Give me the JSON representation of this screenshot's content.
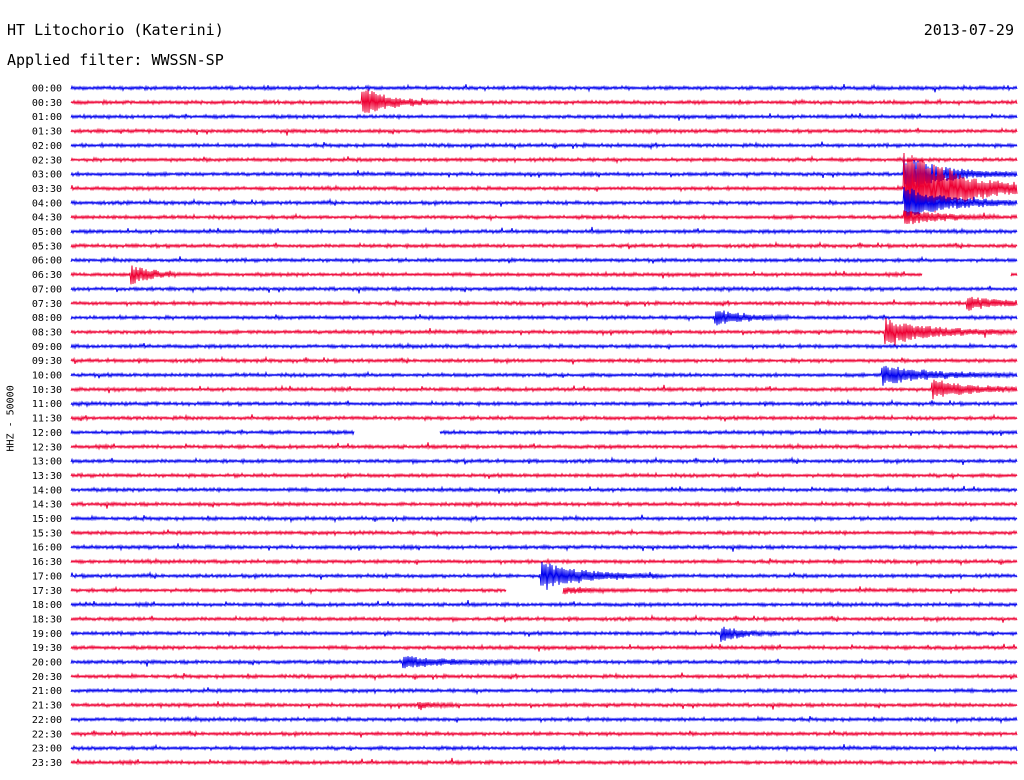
{
  "header": {
    "station": "HT Litochorio (Katerini)",
    "date": "2013-07-29",
    "filter": "Applied filter: WWSSN-SP",
    "channel": "HHZ - 50000"
  },
  "colors": {
    "blue": "#0000ee",
    "red": "#ee0033"
  },
  "chart_data": {
    "type": "line",
    "title": "HT Litochorio (Katerini)",
    "subtitle": "Applied filter: WWSSN-SP",
    "ylabel": "HHZ - 50000",
    "y_tick_labels": [
      "00:00",
      "00:30",
      "01:00",
      "01:30",
      "02:00",
      "02:30",
      "03:00",
      "03:30",
      "04:00",
      "04:30",
      "05:00",
      "05:30",
      "06:00",
      "06:30",
      "07:00",
      "07:30",
      "08:00",
      "08:30",
      "09:00",
      "09:30",
      "10:00",
      "10:30",
      "11:00",
      "11:30",
      "12:00",
      "12:30",
      "13:00",
      "13:30",
      "14:00",
      "14:30",
      "15:00",
      "15:30",
      "16:00",
      "16:30",
      "17:00",
      "17:30",
      "18:00",
      "18:30",
      "19:00",
      "19:30",
      "20:00",
      "20:30",
      "21:00",
      "21:30",
      "22:00",
      "22:30",
      "23:00",
      "23:30"
    ],
    "trace_colors": [
      "blue",
      "red"
    ],
    "x_range_minutes": [
      0,
      30
    ],
    "events": [
      {
        "line": 1,
        "t": 9.2,
        "amp": 16,
        "dur": 0.8,
        "color": "red"
      },
      {
        "line": 7,
        "t": 26.4,
        "amp": 42,
        "dur": 1.6,
        "color": "red"
      },
      {
        "line": 6,
        "t": 26.4,
        "amp": 18,
        "dur": 1.2,
        "color": "blue"
      },
      {
        "line": 8,
        "t": 26.4,
        "amp": 16,
        "dur": 1.4,
        "color": "blue"
      },
      {
        "line": 9,
        "t": 26.4,
        "amp": 8,
        "dur": 1.0,
        "color": "red"
      },
      {
        "line": 13,
        "t": 1.9,
        "amp": 10,
        "dur": 0.6,
        "color": "red"
      },
      {
        "line": 15,
        "t": 28.4,
        "amp": 6,
        "dur": 1.2,
        "color": "red"
      },
      {
        "line": 16,
        "t": 20.4,
        "amp": 9,
        "dur": 0.8,
        "color": "blue"
      },
      {
        "line": 17,
        "t": 25.8,
        "amp": 13,
        "dur": 1.4,
        "color": "red"
      },
      {
        "line": 20,
        "t": 25.7,
        "amp": 10,
        "dur": 1.4,
        "color": "blue"
      },
      {
        "line": 21,
        "t": 27.3,
        "amp": 10,
        "dur": 1.2,
        "color": "red"
      },
      {
        "line": 34,
        "t": 14.9,
        "amp": 14,
        "dur": 1.3,
        "color": "blue"
      },
      {
        "line": 35,
        "t": 14.9,
        "amp": 5,
        "dur": 1.0,
        "color": "red"
      },
      {
        "line": 38,
        "t": 20.6,
        "amp": 7,
        "dur": 0.7,
        "color": "blue"
      },
      {
        "line": 40,
        "t": 10.5,
        "amp": 6,
        "dur": 1.4,
        "color": "blue"
      },
      {
        "line": 43,
        "t": 11.0,
        "amp": 4,
        "dur": 0.4,
        "color": "red"
      }
    ],
    "gaps": [
      {
        "line": 13,
        "from": 27.0,
        "to": 29.8
      },
      {
        "line": 24,
        "from": 9.0,
        "to": 11.7
      },
      {
        "line": 35,
        "from": 13.8,
        "to": 15.6
      }
    ]
  }
}
